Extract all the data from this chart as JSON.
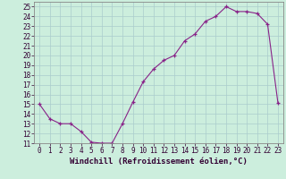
{
  "x": [
    0,
    1,
    2,
    3,
    4,
    5,
    6,
    7,
    8,
    9,
    10,
    11,
    12,
    13,
    14,
    15,
    16,
    17,
    18,
    19,
    20,
    21,
    22,
    23
  ],
  "y": [
    15.0,
    13.5,
    13.0,
    13.0,
    12.2,
    11.1,
    11.0,
    11.0,
    13.0,
    15.2,
    17.3,
    18.6,
    19.5,
    20.0,
    21.5,
    22.2,
    23.5,
    24.0,
    25.0,
    24.5,
    24.5,
    24.3,
    23.2,
    15.1
  ],
  "line_color": "#882288",
  "marker": "+",
  "bg_color": "#cceedd",
  "grid_color": "#aacccc",
  "xlabel": "Windchill (Refroidissement éolien,°C)",
  "xlabel_fontsize": 6.5,
  "xlim": [
    -0.5,
    23.5
  ],
  "ylim": [
    11,
    25.5
  ],
  "yticks": [
    11,
    12,
    13,
    14,
    15,
    16,
    17,
    18,
    19,
    20,
    21,
    22,
    23,
    24,
    25
  ],
  "xticks": [
    0,
    1,
    2,
    3,
    4,
    5,
    6,
    7,
    8,
    9,
    10,
    11,
    12,
    13,
    14,
    15,
    16,
    17,
    18,
    19,
    20,
    21,
    22,
    23
  ],
  "tick_fontsize": 5.5,
  "line_width": 0.8,
  "marker_size": 3.5,
  "spine_color": "#888888"
}
